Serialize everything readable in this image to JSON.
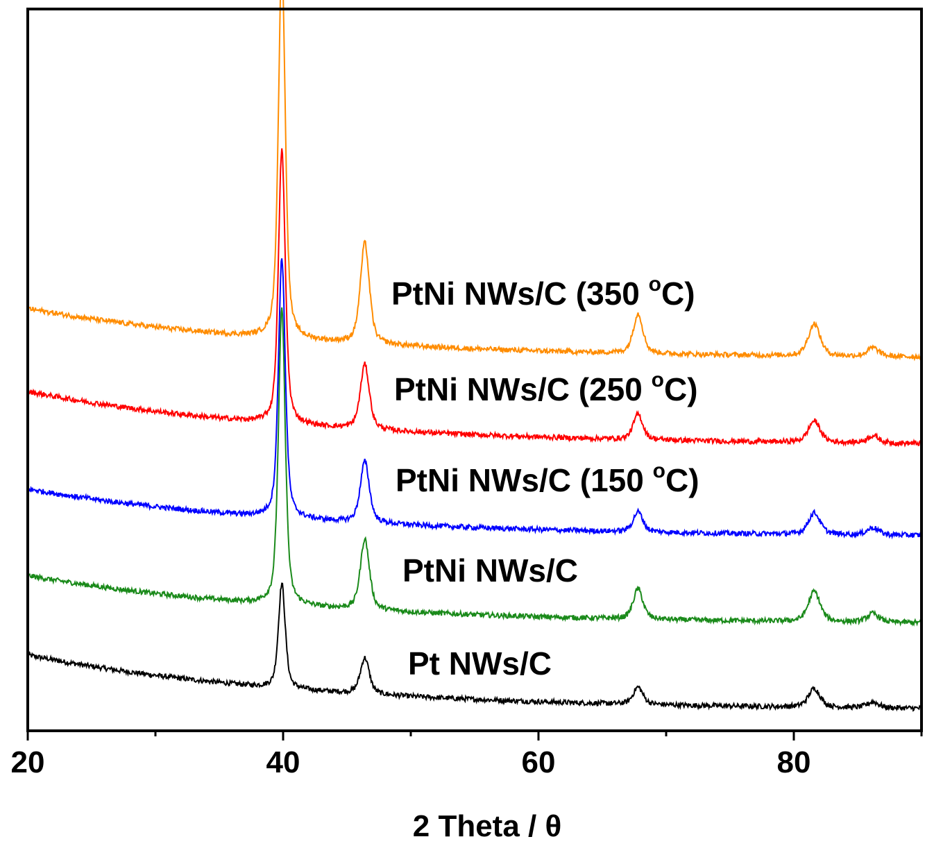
{
  "chart_data": {
    "type": "line",
    "title": "",
    "xlabel": "2 Theta / θ",
    "ylabel": "",
    "xlim": [
      20,
      90
    ],
    "ylim": [
      0,
      10
    ],
    "x_ticks": [
      20,
      40,
      60,
      80
    ],
    "x_minor_ticks": [
      30,
      50,
      70,
      90
    ],
    "y_ticks_visible": false,
    "grid": false,
    "legend": "inline labels beside each curve",
    "peak_positions_2theta": [
      39.9,
      46.4,
      67.8,
      81.6,
      86.2
    ],
    "series": [
      {
        "name": "Pt NWs/C",
        "label_main": "Pt NWs/C",
        "color": "#000000",
        "start_intensity": 1.05,
        "baseline_end": 0.28,
        "peak_heights": [
          1.45,
          0.5,
          0.24,
          0.26,
          0.08
        ]
      },
      {
        "name": "PtNi NWs/C",
        "label_main": "PtNi NWs/C",
        "color": "#1a8a1a",
        "start_intensity": 2.15,
        "baseline_end": 1.47,
        "peak_heights": [
          4.1,
          0.98,
          0.42,
          0.42,
          0.12
        ]
      },
      {
        "name": "PtNi NWs/C (150 °C)",
        "label_main": "PtNi NWs/C (150 ",
        "label_sup": "o",
        "label_end": "C)",
        "color": "#0000ff",
        "start_intensity": 3.35,
        "baseline_end": 2.68,
        "peak_heights": [
          3.6,
          0.85,
          0.28,
          0.3,
          0.1
        ]
      },
      {
        "name": "PtNi NWs/C (250 °C)",
        "label_main": "PtNi NWs/C (250 ",
        "label_sup": "o",
        "label_end": "C)",
        "color": "#ff0000",
        "start_intensity": 4.7,
        "baseline_end": 3.95,
        "peak_heights": [
          3.8,
          0.9,
          0.35,
          0.3,
          0.1
        ]
      },
      {
        "name": "PtNi NWs/C (350 °C)",
        "label_main": "PtNi NWs/C (350 ",
        "label_sup": "o",
        "label_end": "C)",
        "color": "#ff8c00",
        "start_intensity": 5.85,
        "baseline_end": 5.15,
        "peak_heights": [
          5.25,
          1.4,
          0.55,
          0.45,
          0.12
        ]
      }
    ]
  }
}
